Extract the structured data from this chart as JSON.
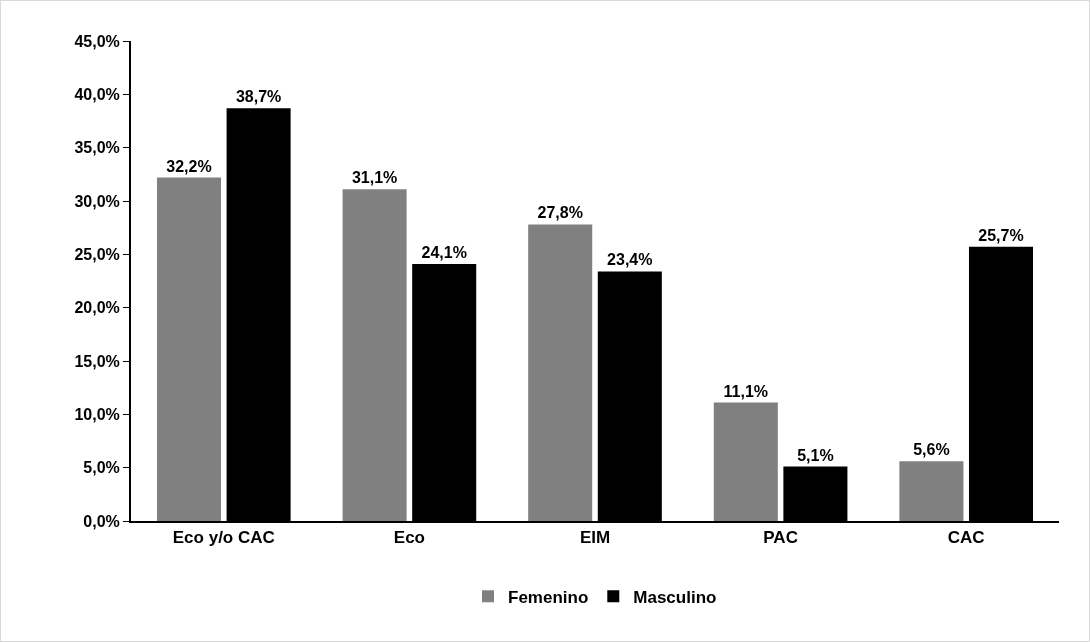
{
  "chart_data": {
    "type": "bar",
    "categories": [
      "Eco y/o CAC",
      "Eco",
      "EIM",
      "PAC",
      "CAC"
    ],
    "series": [
      {
        "name": "Femenino",
        "color": "#808080",
        "values": [
          32.2,
          31.1,
          27.8,
          11.1,
          5.6
        ],
        "value_labels": [
          "32,2%",
          "31,1%",
          "27,8%",
          "11,1%",
          "5,6%"
        ]
      },
      {
        "name": "Masculino",
        "color": "#000000",
        "values": [
          38.7,
          24.1,
          23.4,
          5.1,
          25.7
        ],
        "value_labels": [
          "38,7%",
          "24,1%",
          "23,4%",
          "5,1%",
          "25,7%"
        ]
      }
    ],
    "ylim": [
      0,
      45
    ],
    "yticks": [
      {
        "value": 0,
        "label": "0,0%"
      },
      {
        "value": 5,
        "label": "5,0%"
      },
      {
        "value": 10,
        "label": "10,0%"
      },
      {
        "value": 15,
        "label": "15,0%"
      },
      {
        "value": 20,
        "label": "20,0%"
      },
      {
        "value": 25,
        "label": "25,0%"
      },
      {
        "value": 30,
        "label": "30,0%"
      },
      {
        "value": 35,
        "label": "35,0%"
      },
      {
        "value": 40,
        "label": "40,0%"
      },
      {
        "value": 45,
        "label": "45,0%"
      }
    ],
    "grid": false,
    "legend": "bottom"
  }
}
